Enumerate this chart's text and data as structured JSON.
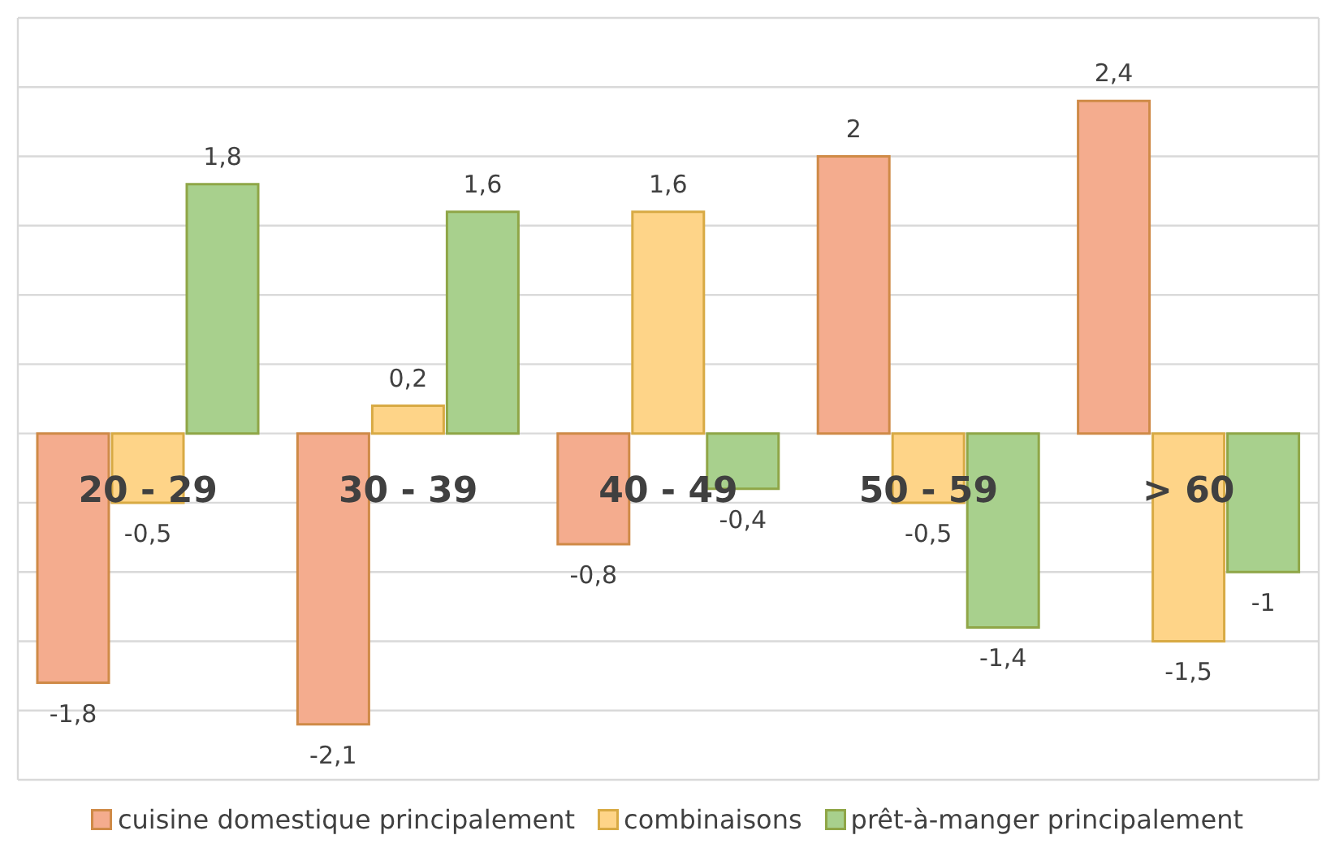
{
  "chart_data": {
    "type": "bar",
    "categories": [
      "20 - 29",
      "30 - 39",
      "40 - 49",
      "50 - 59",
      "> 60"
    ],
    "series": [
      {
        "name": "cuisine domestique principalement",
        "color": "#f4ac8e",
        "values": [
          -1.8,
          -2.1,
          -0.8,
          2,
          2.4
        ],
        "value_labels": [
          "-1,8",
          "-2,1",
          "-0,8",
          "2",
          "2,4"
        ]
      },
      {
        "name": "combinaisons",
        "color": "#fed488",
        "values": [
          -0.5,
          0.2,
          1.6,
          -0.5,
          -1.5
        ],
        "value_labels": [
          "-0,5",
          "0,2",
          "1,6",
          "-0,5",
          "-1,5"
        ]
      },
      {
        "name": "prêt-à-manger principalement",
        "color": "#a8d08d",
        "values": [
          1.8,
          1.6,
          -0.4,
          -1.4,
          -1
        ],
        "value_labels": [
          "1,8",
          "1,6",
          "-0,4",
          "-1,4",
          "-1"
        ]
      }
    ],
    "relative": false,
    "ylim": [
      -2.5,
      3
    ],
    "grid": true,
    "legend": "bottom"
  }
}
